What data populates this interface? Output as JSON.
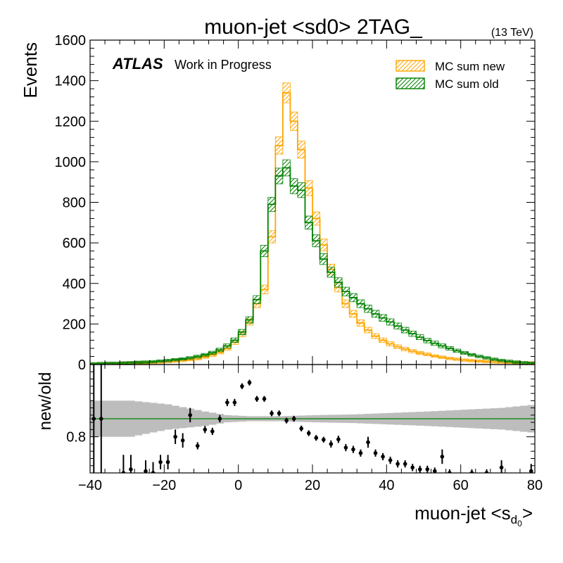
{
  "chart_data": [
    {
      "type": "histogram",
      "title": "muon-jet <sd0> 2TAG_",
      "energy_label": "(13 TeV)",
      "experiment_label": "ATLAS",
      "status_label": "Work in Progress",
      "ylabel": "Events",
      "xlim": [
        -40,
        80
      ],
      "ylim": [
        0,
        1600
      ],
      "y_ticks": [
        0,
        200,
        400,
        600,
        800,
        1000,
        1200,
        1400,
        1600
      ],
      "x_ticks": [
        -40,
        -20,
        0,
        20,
        40,
        60,
        80
      ],
      "bin_width": 2,
      "legend_position": "top-right",
      "series": [
        {
          "name": "MC sum new",
          "color": "#ffa500",
          "bin_edges_start": -40,
          "values": [
            3,
            4,
            5,
            5,
            6,
            7,
            8,
            9,
            10,
            12,
            14,
            17,
            20,
            24,
            29,
            37,
            47,
            60,
            80,
            110,
            150,
            210,
            300,
            370,
            630,
            1080,
            1340,
            1200,
            1060,
            870,
            720,
            590,
            470,
            380,
            300,
            250,
            205,
            170,
            140,
            120,
            102,
            88,
            76,
            66,
            57,
            50,
            42,
            36,
            30,
            26,
            22,
            19,
            17,
            15,
            13,
            12,
            11,
            10,
            9,
            8
          ]
        },
        {
          "name": "MC sum old",
          "color": "#008000",
          "bin_edges_start": -40,
          "values": [
            4,
            5,
            6,
            6,
            8,
            9,
            11,
            12,
            14,
            17,
            20,
            24,
            28,
            33,
            40,
            48,
            58,
            72,
            92,
            120,
            160,
            220,
            320,
            560,
            790,
            930,
            970,
            880,
            860,
            700,
            610,
            520,
            455,
            405,
            360,
            330,
            300,
            275,
            250,
            230,
            210,
            190,
            170,
            152,
            135,
            118,
            105,
            92,
            80,
            68,
            57,
            48,
            40,
            33,
            26,
            20,
            16,
            12,
            9,
            7
          ]
        }
      ]
    },
    {
      "type": "ratio",
      "ylabel": "new/old",
      "xlabel": "muon-jet <s",
      "xlabel_sub": "d",
      "xlabel_subsub": "0",
      "xlabel_suffix": ">",
      "xlim": [
        -40,
        80
      ],
      "ylim": [
        0.7,
        1.0
      ],
      "y_ticks": [
        0.8
      ],
      "x_ticks": [
        -40,
        -20,
        0,
        20,
        40,
        60,
        80
      ],
      "reference_line": 0.85,
      "reference_color": "#008000",
      "band_color": "#bdbdbd",
      "band": [
        {
          "x": -40,
          "up": 0.9,
          "dn": 0.8
        },
        {
          "x": -30,
          "up": 0.9,
          "dn": 0.8
        },
        {
          "x": -20,
          "up": 0.89,
          "dn": 0.82
        },
        {
          "x": -10,
          "up": 0.87,
          "dn": 0.83
        },
        {
          "x": -4,
          "up": 0.86,
          "dn": 0.84
        },
        {
          "x": 2,
          "up": 0.857,
          "dn": 0.843
        },
        {
          "x": 10,
          "up": 0.857,
          "dn": 0.843
        },
        {
          "x": 20,
          "up": 0.86,
          "dn": 0.84
        },
        {
          "x": 30,
          "up": 0.862,
          "dn": 0.838
        },
        {
          "x": 40,
          "up": 0.866,
          "dn": 0.834
        },
        {
          "x": 50,
          "up": 0.87,
          "dn": 0.83
        },
        {
          "x": 60,
          "up": 0.875,
          "dn": 0.825
        },
        {
          "x": 70,
          "up": 0.88,
          "dn": 0.82
        },
        {
          "x": 80,
          "up": 0.89,
          "dn": 0.81
        }
      ],
      "points": [
        {
          "x": -39,
          "y": 0.85,
          "err": 0.15
        },
        {
          "x": -37,
          "y": 0.85,
          "err": 0.15
        },
        {
          "x": -31,
          "y": 0.7,
          "err": 0.05
        },
        {
          "x": -29,
          "y": 0.71,
          "err": 0.04
        },
        {
          "x": -25,
          "y": 0.705,
          "err": 0.03
        },
        {
          "x": -23,
          "y": 0.7,
          "err": 0.03
        },
        {
          "x": -21,
          "y": 0.73,
          "err": 0.02
        },
        {
          "x": -19,
          "y": 0.73,
          "err": 0.02
        },
        {
          "x": -17,
          "y": 0.8,
          "err": 0.02
        },
        {
          "x": -15,
          "y": 0.79,
          "err": 0.02
        },
        {
          "x": -13,
          "y": 0.86,
          "err": 0.02
        },
        {
          "x": -11,
          "y": 0.775,
          "err": 0.01
        },
        {
          "x": -9,
          "y": 0.82,
          "err": 0.01
        },
        {
          "x": -7,
          "y": 0.815,
          "err": 0.01
        },
        {
          "x": -5,
          "y": 0.85,
          "err": 0.01
        },
        {
          "x": -3,
          "y": 0.895,
          "err": 0.01
        },
        {
          "x": -1,
          "y": 0.895,
          "err": 0.01
        },
        {
          "x": 1,
          "y": 0.94,
          "err": 0.008
        },
        {
          "x": 3,
          "y": 0.95,
          "err": 0.008
        },
        {
          "x": 5,
          "y": 0.905,
          "err": 0.008
        },
        {
          "x": 7,
          "y": 0.905,
          "err": 0.008
        },
        {
          "x": 9,
          "y": 0.865,
          "err": 0.008
        },
        {
          "x": 11,
          "y": 0.865,
          "err": 0.008
        },
        {
          "x": 13,
          "y": 0.845,
          "err": 0.008
        },
        {
          "x": 15,
          "y": 0.85,
          "err": 0.008
        },
        {
          "x": 17,
          "y": 0.823,
          "err": 0.008
        },
        {
          "x": 19,
          "y": 0.81,
          "err": 0.008
        },
        {
          "x": 21,
          "y": 0.797,
          "err": 0.008
        },
        {
          "x": 23,
          "y": 0.792,
          "err": 0.008
        },
        {
          "x": 25,
          "y": 0.78,
          "err": 0.01
        },
        {
          "x": 27,
          "y": 0.793,
          "err": 0.01
        },
        {
          "x": 29,
          "y": 0.77,
          "err": 0.01
        },
        {
          "x": 31,
          "y": 0.765,
          "err": 0.01
        },
        {
          "x": 33,
          "y": 0.755,
          "err": 0.01
        },
        {
          "x": 35,
          "y": 0.785,
          "err": 0.015
        },
        {
          "x": 37,
          "y": 0.755,
          "err": 0.01
        },
        {
          "x": 39,
          "y": 0.745,
          "err": 0.01
        },
        {
          "x": 41,
          "y": 0.735,
          "err": 0.01
        },
        {
          "x": 43,
          "y": 0.725,
          "err": 0.01
        },
        {
          "x": 45,
          "y": 0.725,
          "err": 0.01
        },
        {
          "x": 47,
          "y": 0.715,
          "err": 0.01
        },
        {
          "x": 49,
          "y": 0.71,
          "err": 0.01
        },
        {
          "x": 51,
          "y": 0.71,
          "err": 0.01
        },
        {
          "x": 53,
          "y": 0.705,
          "err": 0.01
        },
        {
          "x": 55,
          "y": 0.745,
          "err": 0.02
        },
        {
          "x": 57,
          "y": 0.7,
          "err": 0.01
        },
        {
          "x": 63,
          "y": 0.7,
          "err": 0.01
        },
        {
          "x": 67,
          "y": 0.7,
          "err": 0.01
        },
        {
          "x": 71,
          "y": 0.715,
          "err": 0.02
        },
        {
          "x": 79,
          "y": 0.705,
          "err": 0.02
        }
      ]
    }
  ]
}
